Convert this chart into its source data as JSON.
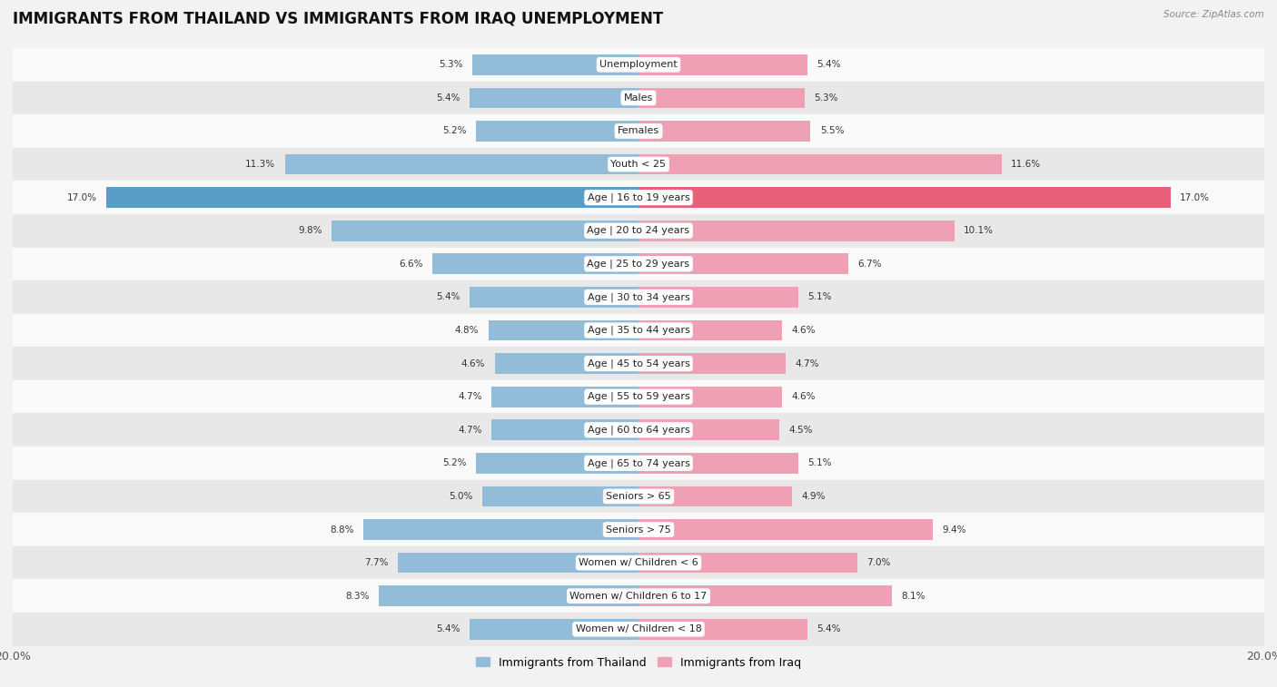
{
  "title": "IMMIGRANTS FROM THAILAND VS IMMIGRANTS FROM IRAQ UNEMPLOYMENT",
  "source": "Source: ZipAtlas.com",
  "categories": [
    "Unemployment",
    "Males",
    "Females",
    "Youth < 25",
    "Age | 16 to 19 years",
    "Age | 20 to 24 years",
    "Age | 25 to 29 years",
    "Age | 30 to 34 years",
    "Age | 35 to 44 years",
    "Age | 45 to 54 years",
    "Age | 55 to 59 years",
    "Age | 60 to 64 years",
    "Age | 65 to 74 years",
    "Seniors > 65",
    "Seniors > 75",
    "Women w/ Children < 6",
    "Women w/ Children 6 to 17",
    "Women w/ Children < 18"
  ],
  "thailand_values": [
    5.3,
    5.4,
    5.2,
    11.3,
    17.0,
    9.8,
    6.6,
    5.4,
    4.8,
    4.6,
    4.7,
    4.7,
    5.2,
    5.0,
    8.8,
    7.7,
    8.3,
    5.4
  ],
  "iraq_values": [
    5.4,
    5.3,
    5.5,
    11.6,
    17.0,
    10.1,
    6.7,
    5.1,
    4.6,
    4.7,
    4.6,
    4.5,
    5.1,
    4.9,
    9.4,
    7.0,
    8.1,
    5.4
  ],
  "thailand_color": "#92bcd8",
  "iraq_color": "#f0a0b5",
  "highlight_thailand_color": "#5a9ec8",
  "highlight_iraq_color": "#e8607a",
  "xlim": 20.0,
  "background_color": "#f2f2f2",
  "row_bg_light": "#fafafa",
  "row_bg_dark": "#e8e8e8",
  "legend_thailand": "Immigrants from Thailand",
  "legend_iraq": "Immigrants from Iraq",
  "title_fontsize": 12,
  "label_fontsize": 8,
  "value_fontsize": 7.5
}
